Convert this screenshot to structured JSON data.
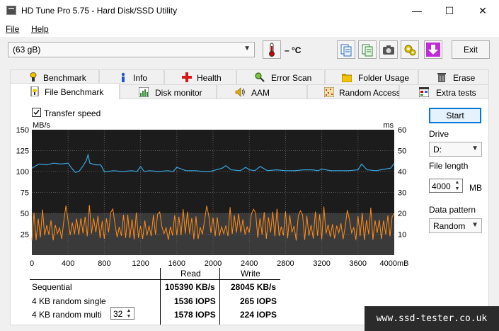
{
  "window": {
    "title": "HD Tune Pro 5.75 - Hard Disk/SSD Utility",
    "minimize_glyph": "—",
    "maximize_glyph": "☐",
    "close_glyph": "✕"
  },
  "menu": {
    "file": "File",
    "help": "Help"
  },
  "toolbar": {
    "drive_value": "(63 gB)",
    "temperature": "– °C",
    "exit_label": "Exit",
    "icons": [
      "thermometer-icon",
      "copy-text-icon",
      "copy-info-icon",
      "screenshot-icon",
      "options-icon",
      "save-icon"
    ]
  },
  "tabs": {
    "row1": [
      "Benchmark",
      "Info",
      "Health",
      "Error Scan",
      "Folder Usage",
      "Erase"
    ],
    "row2": [
      "File Benchmark",
      "Disk monitor",
      "AAM",
      "Random Access",
      "Extra tests"
    ],
    "active": "File Benchmark"
  },
  "file_benchmark": {
    "transfer_speed_label": "Transfer speed",
    "transfer_speed_checked": true
  },
  "controls": {
    "start_label": "Start",
    "drive_label": "Drive",
    "drive_value": "D:",
    "file_length_label": "File length",
    "file_length_value": "4000",
    "file_length_unit": "MB",
    "data_pattern_label": "Data pattern",
    "data_pattern_value": "Random"
  },
  "chart_data": {
    "type": "line",
    "left_axis_label": "MB/s",
    "right_axis_label": "ms",
    "x_unit": "mB",
    "y_left_ticks": [
      25,
      50,
      75,
      100,
      125,
      150
    ],
    "y_right_ticks": [
      10,
      20,
      30,
      40,
      50,
      60
    ],
    "x_ticks": [
      0,
      400,
      800,
      1200,
      1600,
      2000,
      2400,
      2800,
      3200,
      3600,
      4000
    ],
    "ylim_left": [
      0,
      150
    ],
    "ylim_right": [
      0,
      60
    ],
    "xlim": [
      0,
      4000
    ],
    "grid": true,
    "series": [
      {
        "color": "#3aa6e0",
        "axis": "left",
        "x": [
          0,
          80,
          160,
          240,
          320,
          400,
          440,
          480,
          520,
          560,
          600,
          620,
          640,
          700,
          760,
          800,
          840,
          900,
          1000,
          1100,
          1160,
          1200,
          1240,
          1300,
          1400,
          1500,
          1560,
          1600,
          1700,
          1800,
          1900,
          1960,
          2000,
          2100,
          2140,
          2200,
          2300,
          2360,
          2400,
          2460,
          2520,
          2600,
          2700,
          2800,
          2900,
          3000,
          3100,
          3160,
          3200,
          3300,
          3400,
          3500,
          3600,
          3640,
          3700,
          3800,
          3900,
          3960,
          4000
        ],
        "y": [
          104,
          109,
          108,
          110,
          109,
          110,
          104,
          99,
          100,
          106,
          113,
          120,
          110,
          108,
          108,
          100,
          100,
          101,
          100,
          101,
          100,
          106,
          100,
          101,
          100,
          101,
          100,
          105,
          101,
          101,
          100,
          100,
          101,
          104,
          107,
          102,
          101,
          105,
          102,
          101,
          106,
          101,
          102,
          101,
          101,
          102,
          102,
          101,
          103,
          101,
          101,
          101,
          102,
          109,
          102,
          101,
          103,
          104,
          110
        ]
      },
      {
        "color": "#ff8c1a",
        "axis": "right",
        "summary": "oscillating access time between about 7 and 22 ms"
      }
    ]
  },
  "results": {
    "read_header": "Read",
    "write_header": "Write",
    "rows": [
      {
        "label": "Sequential",
        "read": "105390 KB/s",
        "write": "28045 KB/s"
      },
      {
        "label": "4 KB random single",
        "read": "1536 IOPS",
        "write": "265 IOPS"
      },
      {
        "label": "4 KB random multi",
        "read": "1578 IOPS",
        "write": "224 IOPS"
      }
    ],
    "queue_depth": "32"
  },
  "watermark": "www.ssd-tester.co.uk"
}
